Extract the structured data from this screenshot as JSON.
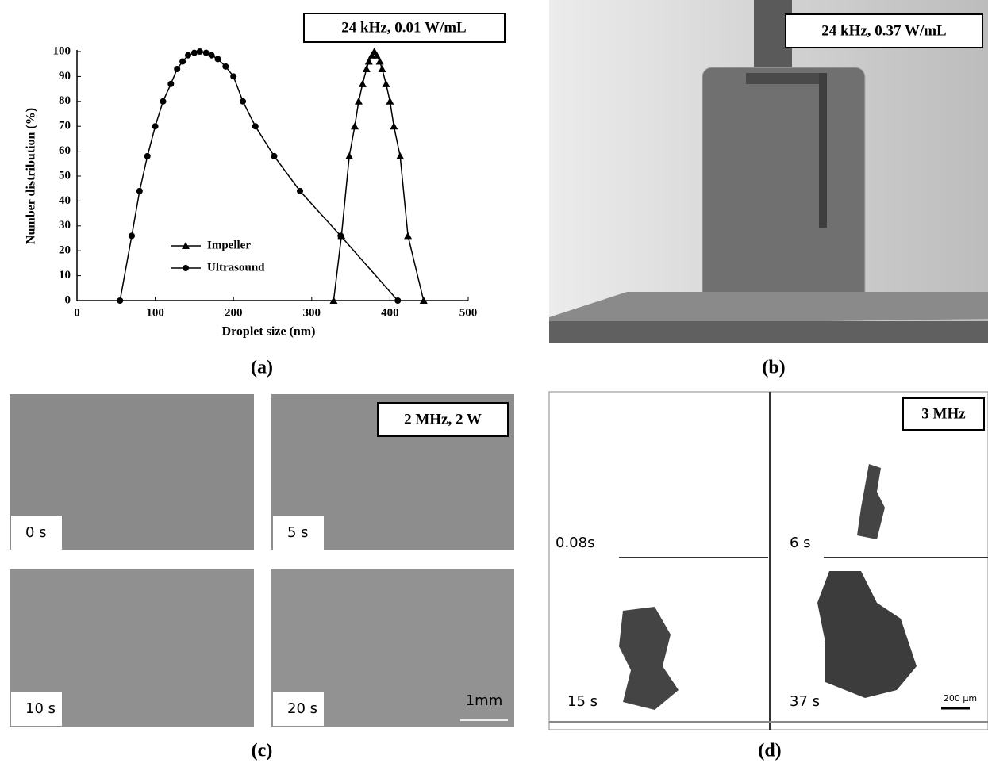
{
  "chart_data": {
    "type": "line",
    "panel_label": "(a)",
    "annotation": "24 kHz, 0.01 W/mL",
    "x_label": "Droplet size (nm)",
    "y_label": "Number distribution (%)",
    "xlim": [
      0,
      500
    ],
    "xticks": [
      0,
      100,
      200,
      300,
      400,
      500
    ],
    "ylim": [
      0,
      100
    ],
    "yticks": [
      0,
      10,
      20,
      30,
      40,
      50,
      60,
      70,
      80,
      90,
      100
    ],
    "legend": "lower left",
    "series": [
      {
        "name": "Impeller",
        "color": "#000000",
        "marker": "triangle",
        "x": [
          328,
          338,
          348,
          355,
          360,
          365,
          370,
          373,
          377,
          380,
          383,
          387,
          390,
          395,
          400,
          405,
          413,
          423,
          443
        ],
        "values": [
          0,
          26,
          58,
          70,
          80,
          87,
          93,
          96,
          98.5,
          100,
          98.5,
          96,
          93,
          87,
          80,
          70,
          58,
          26,
          0
        ]
      },
      {
        "name": "Ultrasound",
        "color": "#000000",
        "marker": "circle",
        "x": [
          55,
          70,
          80,
          90,
          100,
          110,
          120,
          128,
          135,
          142,
          150,
          157,
          165,
          172,
          180,
          190,
          200,
          212,
          228,
          252,
          285,
          337,
          410
        ],
        "values": [
          0,
          26,
          44,
          58,
          70,
          80,
          87,
          93,
          96,
          98.5,
          99.5,
          100,
          99.5,
          98.5,
          97,
          94,
          90,
          80,
          70,
          58,
          44,
          26,
          0
        ]
      }
    ]
  },
  "panels": [
    {
      "label": "(b)",
      "annotation": "24 kHz, 0.37 W/mL"
    },
    {
      "label": "(c)",
      "annotation": "2 MHz, 2 W",
      "frames": [
        "0 s",
        "5 s",
        "10 s",
        "20 s"
      ],
      "scale_bar": "1mm"
    },
    {
      "label": "(d)",
      "annotation": "3 MHz",
      "frames": [
        "0.08s",
        "6 s",
        "15 s",
        "37 s"
      ],
      "scale_bar": "200 µm"
    }
  ]
}
